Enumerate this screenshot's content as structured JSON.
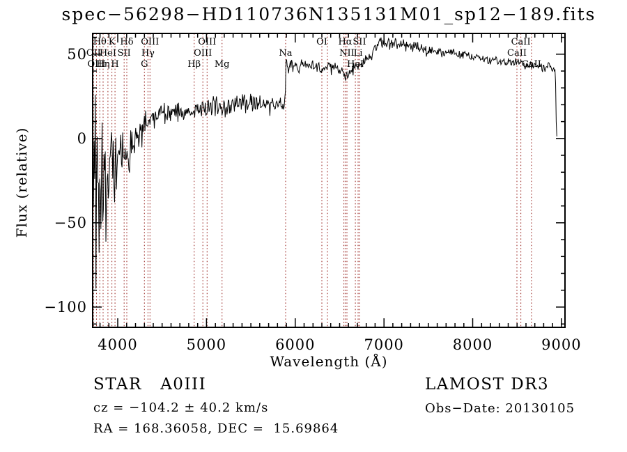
{
  "title": "spec−56298−HD110736N135131M01_sp12−189.fits",
  "footer": {
    "class_label": "STAR   A0III",
    "survey": "LAMOST DR3",
    "cz": "cz = −104.2 ± 40.2 km/s",
    "obs_date": "Obs−Date: 20130105",
    "radec": "RA = 168.36058, DEC =  15.69864"
  },
  "chart_data": {
    "type": "line",
    "title": "spec−56298−HD110736N135131M01_sp12−189.fits",
    "xlabel": "Wavelength (Å)",
    "ylabel": "Flux (relative)",
    "xlim": [
      3717,
      9040
    ],
    "ylim": [
      -112,
      62.3
    ],
    "x_ticks": [
      4000,
      5000,
      6000,
      7000,
      8000,
      9000
    ],
    "x_tick_labels": [
      "4000",
      "5000",
      "6000",
      "7000",
      "8000",
      "9000"
    ],
    "x_minor_step": 100,
    "y_ticks": [
      50,
      0,
      -50,
      -100
    ],
    "y_tick_labels": [
      "50",
      "0",
      "−50",
      "−100"
    ],
    "y_minor_step": 10,
    "grid": false,
    "spectrum_color": "#000000",
    "line_marker_color": "#9e2f2b",
    "line_markers": [
      3727,
      3760,
      3798,
      3835,
      3889,
      3934,
      3969,
      4072,
      4102,
      4300,
      4340,
      4363,
      4861,
      4959,
      5007,
      5175,
      5892,
      6300,
      6363,
      6548,
      6563,
      6583,
      6678,
      6708,
      6724,
      8498,
      8542,
      8662
    ],
    "line_labels": [
      {
        "text": "Hθ",
        "row": 1,
        "wavelength": 3798
      },
      {
        "text": "K",
        "row": 1,
        "wavelength": 3934
      },
      {
        "text": "Hδ",
        "row": 1,
        "wavelength": 4102
      },
      {
        "text": "OIII",
        "row": 1,
        "wavelength": 4363
      },
      {
        "text": "OIII",
        "row": 1,
        "wavelength": 5007
      },
      {
        "text": "OI",
        "row": 1,
        "wavelength": 6300
      },
      {
        "text": "Hα",
        "row": 1,
        "wavelength": 6563
      },
      {
        "text": "SII",
        "row": 1,
        "wavelength": 6724
      },
      {
        "text": "CaII",
        "row": 1,
        "wavelength": 8542
      },
      {
        "text": "OII",
        "row": 2,
        "wavelength": 3727
      },
      {
        "text": "HeI",
        "row": 2,
        "wavelength": 3889
      },
      {
        "text": "SII",
        "row": 2,
        "wavelength": 4072
      },
      {
        "text": "Hγ",
        "row": 2,
        "wavelength": 4340
      },
      {
        "text": "OIII",
        "row": 2,
        "wavelength": 4959
      },
      {
        "text": "Na",
        "row": 2,
        "wavelength": 5892
      },
      {
        "text": "NII",
        "row": 2,
        "wavelength": 6583
      },
      {
        "text": "Li",
        "row": 2,
        "wavelength": 6708
      },
      {
        "text": "CaII",
        "row": 2,
        "wavelength": 8498
      },
      {
        "text": "OIII",
        "row": 3,
        "wavelength": 3760
      },
      {
        "text": "Hη",
        "row": 3,
        "wavelength": 3835
      },
      {
        "text": "H",
        "row": 3,
        "wavelength": 3969
      },
      {
        "text": "G",
        "row": 3,
        "wavelength": 4300
      },
      {
        "text": "Hβ",
        "row": 3,
        "wavelength": 4861
      },
      {
        "text": "Mg",
        "row": 3,
        "wavelength": 5175
      },
      {
        "text": "HeI",
        "row": 3,
        "wavelength": 6678
      },
      {
        "text": "CaII",
        "row": 3,
        "wavelength": 8662
      }
    ],
    "spectrum_envelope": [
      [
        3719,
        -12,
        55
      ],
      [
        3740,
        -25,
        70
      ],
      [
        3775,
        -30,
        68
      ],
      [
        3810,
        -25,
        58
      ],
      [
        3850,
        -20,
        48
      ],
      [
        3900,
        -16,
        38
      ],
      [
        3950,
        -13,
        32
      ],
      [
        4000,
        -10,
        26
      ],
      [
        4060,
        -7,
        20
      ],
      [
        4130,
        -4,
        15
      ],
      [
        4210,
        1,
        11
      ],
      [
        4300,
        7,
        9
      ],
      [
        4400,
        11,
        8
      ],
      [
        4520,
        14,
        7
      ],
      [
        4650,
        16,
        6.5
      ],
      [
        4790,
        17,
        6.5
      ],
      [
        4861,
        15,
        6
      ],
      [
        4950,
        18,
        6
      ],
      [
        5060,
        20,
        6
      ],
      [
        5175,
        18,
        6
      ],
      [
        5320,
        21,
        6
      ],
      [
        5520,
        21,
        6
      ],
      [
        5720,
        20,
        6
      ],
      [
        5860,
        20,
        7
      ],
      [
        5888,
        26,
        10
      ],
      [
        5893,
        50,
        6
      ],
      [
        5905,
        44,
        5
      ],
      [
        6000,
        43,
        4.5
      ],
      [
        6150,
        43,
        4
      ],
      [
        6300,
        41,
        4
      ],
      [
        6420,
        42,
        4
      ],
      [
        6520,
        40,
        4
      ],
      [
        6555,
        37,
        4
      ],
      [
        6563,
        33,
        3
      ],
      [
        6575,
        38,
        4
      ],
      [
        6650,
        41,
        4
      ],
      [
        6720,
        44,
        4
      ],
      [
        6810,
        47,
        4
      ],
      [
        6900,
        52,
        4.5
      ],
      [
        6960,
        56,
        5
      ],
      [
        7050,
        56,
        4
      ],
      [
        7250,
        55,
        3.5
      ],
      [
        7450,
        53,
        3.5
      ],
      [
        7650,
        51,
        3
      ],
      [
        7850,
        50,
        3
      ],
      [
        8050,
        48,
        3
      ],
      [
        8250,
        46,
        3
      ],
      [
        8450,
        45,
        3
      ],
      [
        8650,
        43,
        3
      ],
      [
        8850,
        42,
        3
      ],
      [
        8930,
        41,
        3
      ],
      [
        8938,
        18,
        5
      ],
      [
        8944,
        1,
        1
      ],
      [
        8952,
        1,
        0.8
      ]
    ]
  }
}
